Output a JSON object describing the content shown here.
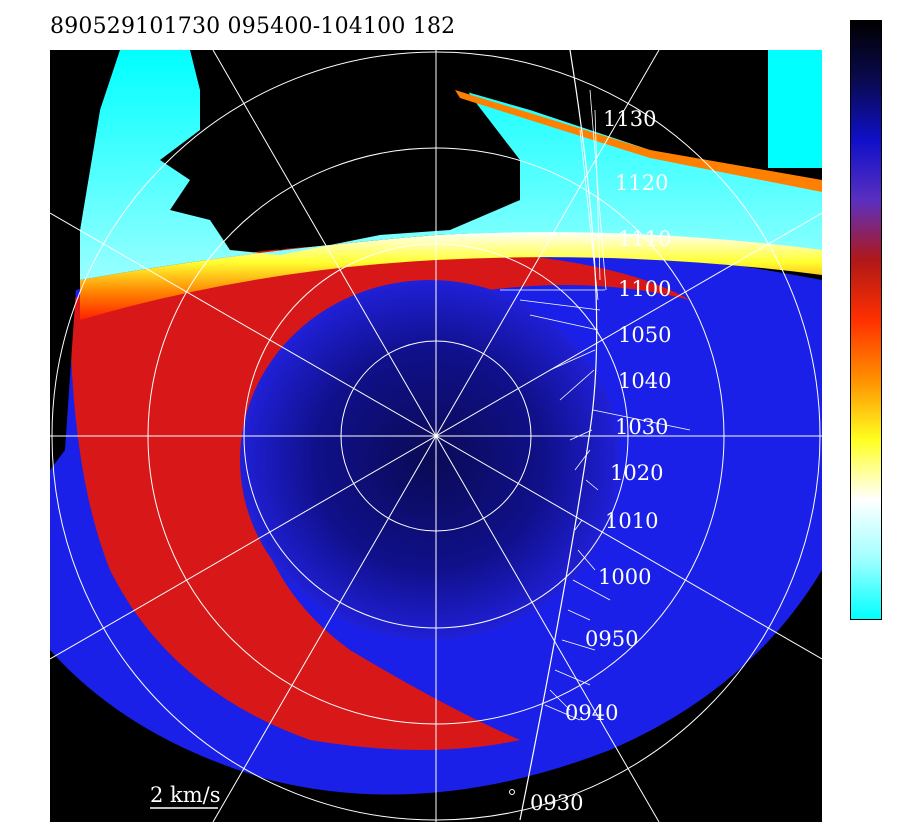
{
  "header": {
    "title": "890529101730 095400-104100 182"
  },
  "plot": {
    "scale_label": "2 km/s",
    "time_labels": [
      "1130",
      "1120",
      "1110",
      "1100",
      "1050",
      "1040",
      "1030",
      "1020",
      "1010",
      "1000",
      "0950",
      "0940",
      "0930"
    ],
    "description_icon": "polar-grid"
  },
  "colorbar": {
    "stops": [
      "#000000",
      "#0a0a50",
      "#1010c8",
      "#5a30c0",
      "#b01818",
      "#ff3000",
      "#ff9000",
      "#ffff20",
      "#ffffff",
      "#a0ffff",
      "#00ffff"
    ]
  },
  "colors": {
    "background": "#000000",
    "cyan_region": "#00ffff",
    "grid": "#ffffff"
  }
}
